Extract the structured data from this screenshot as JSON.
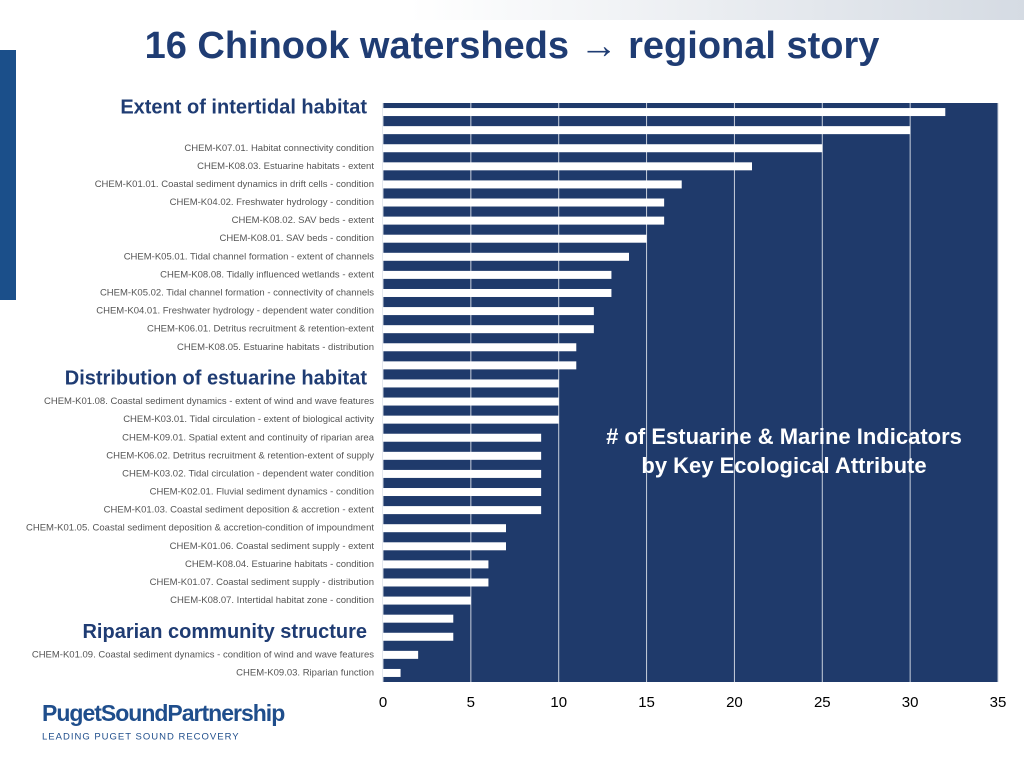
{
  "title": "16 Chinook watersheds → regional story",
  "logo": {
    "name": "PugetSoundPartnership",
    "tagline": "LEADING PUGET SOUND RECOVERY"
  },
  "chart_data": {
    "type": "barh",
    "annotation": [
      "# of Estuarine & Marine Indicators",
      "by Key Ecological Attribute"
    ],
    "categories": [
      "Extent of intertidal habitat",
      null,
      "CHEM-K07.01. Habitat connectivity condition",
      "CHEM-K08.03. Estuarine habitats - extent",
      "CHEM-K01.01. Coastal sediment dynamics in drift cells - condition",
      "CHEM-K04.02. Freshwater hydrology - condition",
      "CHEM-K08.02. SAV beds - extent",
      "CHEM-K08.01. SAV beds - condition",
      "CHEM-K05.01. Tidal channel formation - extent of channels",
      "CHEM-K08.08. Tidally influenced wetlands - extent",
      "CHEM-K05.02. Tidal channel formation - connectivity of channels",
      "CHEM-K04.01. Freshwater hydrology - dependent water condition",
      "CHEM-K06.01. Detritus recruitment & retention-extent",
      "CHEM-K08.05. Estuarine habitats - distribution",
      null,
      "Distribution of estuarine habitat",
      "CHEM-K01.08. Coastal sediment dynamics - extent of wind and wave features",
      "CHEM-K03.01. Tidal circulation - extent of biological activity",
      "CHEM-K09.01. Spatial extent and continuity of riparian area",
      "CHEM-K06.02. Detritus recruitment & retention-extent of supply",
      "CHEM-K03.02. Tidal circulation - dependent water condition",
      "CHEM-K02.01. Fluvial sediment dynamics - condition",
      "CHEM-K01.03. Coastal sediment deposition & accretion - extent",
      "CHEM-K01.05. Coastal sediment deposition & accretion-condition of impoundment",
      "CHEM-K01.06. Coastal sediment supply - extent",
      "CHEM-K08.04. Estuarine habitats - condition",
      "CHEM-K01.07. Coastal sediment supply - distribution",
      "CHEM-K08.07. Intertidal habitat zone - condition",
      null,
      "Riparian community structure",
      "CHEM-K01.09. Coastal sediment dynamics - condition of wind and wave features",
      "CHEM-K09.03. Riparian function"
    ],
    "values": [
      32,
      30,
      25,
      21,
      17,
      16,
      16,
      15,
      14,
      13,
      13,
      12,
      12,
      11,
      11,
      10,
      10,
      10,
      9,
      9,
      9,
      9,
      9,
      7,
      7,
      6,
      6,
      5,
      4,
      4,
      2,
      1
    ],
    "color": "#ffffff",
    "background": "#1f3a6b",
    "xlim": [
      0,
      35
    ],
    "xticks": [
      0,
      5,
      10,
      15,
      20,
      25,
      30,
      35
    ],
    "grid": true
  }
}
